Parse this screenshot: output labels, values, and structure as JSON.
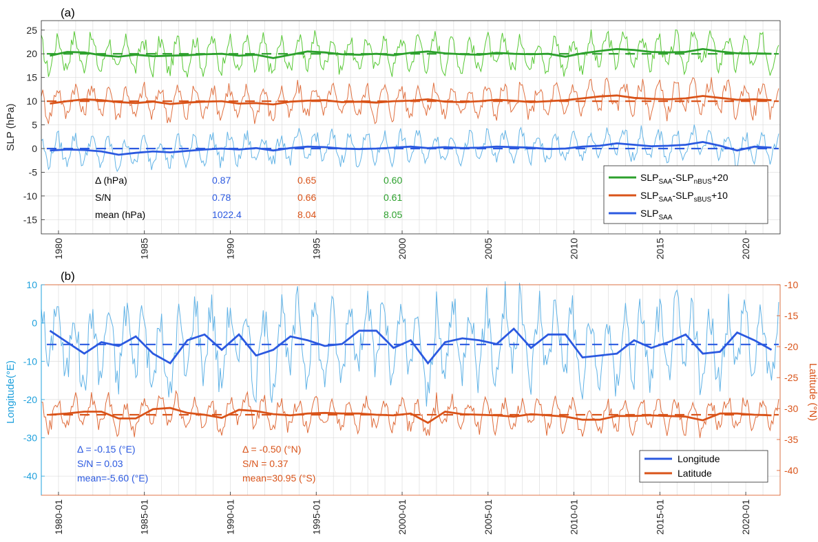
{
  "chart_data": [
    {
      "panel": "(a)",
      "type": "line",
      "ylabel": "SLP (hPa)",
      "xlabel": "",
      "xlim": [
        1979,
        2022
      ],
      "ylim": [
        -18,
        27
      ],
      "yticks": [
        -15,
        -10,
        -5,
        0,
        5,
        10,
        15,
        20,
        25
      ],
      "xticks": [
        1980,
        1985,
        1990,
        1995,
        2000,
        2005,
        2010,
        2015,
        2020
      ],
      "grid": true,
      "legend_position": "bottom-right",
      "legend": [
        {
          "main": "SLP",
          "sub1": "SAA",
          "mid": "-SLP",
          "sub2": "nBUS",
          "tail": "+20",
          "color": "#2ca02c"
        },
        {
          "main": "SLP",
          "sub1": "SAA",
          "mid": "-SLP",
          "sub2": "sBUS",
          "tail": "+10",
          "color": "#d95319"
        },
        {
          "main": "SLP",
          "sub1": "SAA",
          "mid": "",
          "sub2": "",
          "tail": "",
          "color": "#2b59e0"
        }
      ],
      "stats": {
        "rows": [
          "Δ (hPa)",
          "S/N",
          "mean (hPa)"
        ],
        "columns": [
          {
            "color": "#2b59e0",
            "values": [
              "0.87",
              "0.78",
              "1022.4"
            ]
          },
          {
            "color": "#d95319",
            "values": [
              "0.65",
              "0.66",
              "8.04"
            ]
          },
          {
            "color": "#2ca02c",
            "values": [
              "0.60",
              "0.61",
              "8.05"
            ]
          }
        ]
      },
      "series": [
        {
          "color": "#2ca02c",
          "thin_color": "#55c832",
          "offset": 20,
          "amplitude": 3.2,
          "dash_mean": 20,
          "annual": [
            19.6,
            20.4,
            20.3,
            19.7,
            19.4,
            19.8,
            19.5,
            19.6,
            19.7,
            19.9,
            20.0,
            19.6,
            19.8,
            19.1,
            19.8,
            20.5,
            20.3,
            19.9,
            19.8,
            20.0,
            19.7,
            20.2,
            20.5,
            20.1,
            19.9,
            19.8,
            20.2,
            20.0,
            19.9,
            20.0,
            19.4,
            20.1,
            20.6,
            21.0,
            20.8,
            20.4,
            20.3,
            20.4,
            21.0,
            20.5,
            20.1,
            20.1,
            20.0
          ]
        },
        {
          "color": "#d95319",
          "thin_color": "#e07040",
          "offset": 10,
          "amplitude": 3.0,
          "dash_mean": 10,
          "annual": [
            9.5,
            10.0,
            10.4,
            10.2,
            9.8,
            9.6,
            9.9,
            9.4,
            9.7,
            9.9,
            10.0,
            9.5,
            9.6,
            9.3,
            9.9,
            10.1,
            10.2,
            9.8,
            9.9,
            9.7,
            10.0,
            10.1,
            10.4,
            9.9,
            9.8,
            10.0,
            10.3,
            10.1,
            9.8,
            10.0,
            10.2,
            10.6,
            11.0,
            11.2,
            10.7,
            10.5,
            10.4,
            10.6,
            11.1,
            10.7,
            10.3,
            10.4,
            10.2
          ]
        },
        {
          "color": "#2b59e0",
          "thin_color": "#63b4e6",
          "offset": 0,
          "amplitude": 2.7,
          "dash_mean": 0,
          "annual": [
            -0.4,
            -0.2,
            -0.3,
            -0.6,
            -1.3,
            -0.9,
            -0.6,
            -0.8,
            -0.5,
            -0.2,
            0.0,
            -0.2,
            0.1,
            -0.4,
            0.1,
            0.4,
            0.3,
            0.0,
            -0.1,
            0.0,
            0.2,
            0.4,
            0.1,
            0.3,
            0.1,
            0.2,
            0.4,
            0.3,
            0.2,
            -0.1,
            0.0,
            0.4,
            0.6,
            1.1,
            0.8,
            0.5,
            0.6,
            0.8,
            1.4,
            0.6,
            -0.4,
            0.4,
            0.2
          ]
        }
      ]
    },
    {
      "panel": "(b)",
      "type": "line",
      "ylabel": "Longitude(°E)",
      "y2label": "Latitude (°N)",
      "xlim": [
        1979,
        2022
      ],
      "ylim": [
        -45,
        10
      ],
      "y2lim": [
        -44,
        -10
      ],
      "yticks": [
        -40,
        -30,
        -20,
        -10,
        0,
        10
      ],
      "y2ticks": [
        -40,
        -35,
        -30,
        -25,
        -20,
        -15,
        -10
      ],
      "xticks": [
        "1980-01",
        "1985-01",
        "1990-01",
        "1995-01",
        "2000-01",
        "2005-01",
        "2010-01",
        "2015-01",
        "2020-01"
      ],
      "grid": true,
      "legend_position": "bottom-right",
      "legend": [
        {
          "name": "Longitude",
          "color": "#2b59e0"
        },
        {
          "name": "Latitude",
          "color": "#d95319"
        }
      ],
      "stats": [
        {
          "color": "#2b59e0",
          "lines": [
            "Δ = -0.15 (°E)",
            "S/N = 0.03",
            "mean=-5.60 (°E)"
          ]
        },
        {
          "color": "#d95319",
          "lines": [
            "Δ = -0.50 (°N)",
            "S/N = 0.37",
            "mean=30.95 (°S)"
          ]
        }
      ],
      "series": [
        {
          "name": "Longitude",
          "axis": "left",
          "color": "#2b59e0",
          "thin_color": "#5fb2e6",
          "amplitude": 9,
          "dash_mean": -5.6,
          "annual": [
            -2.0,
            -5.0,
            -8.0,
            -5.0,
            -6.0,
            -3.5,
            -8.0,
            -10.5,
            -4.5,
            -3.0,
            -7.0,
            -3.0,
            -8.5,
            -7.0,
            -3.5,
            -4.5,
            -6.0,
            -5.5,
            -2.0,
            -2.0,
            -6.5,
            -4.5,
            -10.5,
            -5.0,
            -4.0,
            -4.5,
            -5.5,
            -1.5,
            -6.5,
            -3.0,
            -3.0,
            -9.0,
            -8.5,
            -8.0,
            -4.5,
            -6.5,
            -5.0,
            -3.0,
            -8.0,
            -7.5,
            -2.5,
            -4.5,
            -7.0
          ]
        },
        {
          "name": "Latitude",
          "axis": "right",
          "color": "#d95319",
          "thin_color": "#df6a38",
          "amplitude": 2.2,
          "dash_mean": -31.0,
          "annual": [
            -31.0,
            -30.8,
            -30.5,
            -30.5,
            -31.6,
            -31.6,
            -30.1,
            -29.9,
            -30.7,
            -31.0,
            -31.5,
            -30.2,
            -30.4,
            -30.9,
            -31.1,
            -30.8,
            -30.7,
            -30.8,
            -30.8,
            -31.0,
            -31.1,
            -30.8,
            -32.3,
            -30.5,
            -30.9,
            -31.0,
            -31.1,
            -31.3,
            -30.9,
            -31.1,
            -31.3,
            -31.8,
            -31.8,
            -31.2,
            -31.2,
            -31.1,
            -31.2,
            -31.3,
            -31.9,
            -30.8,
            -30.8,
            -31.0,
            -31.1
          ]
        }
      ]
    }
  ],
  "panel_a_label": "(a)",
  "panel_b_label": "(b)"
}
